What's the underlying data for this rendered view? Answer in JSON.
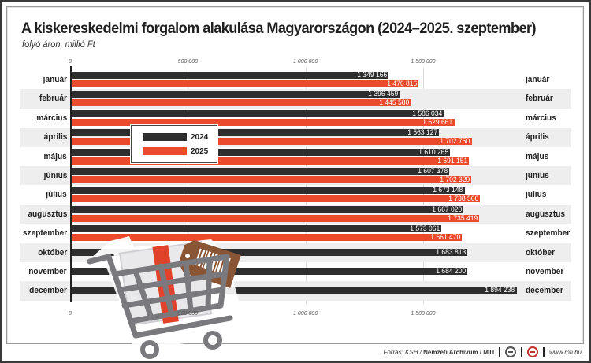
{
  "header": {
    "title": "A kiskereskedelmi forgalom alakulása Magyarországon (2024–2025. szeptember)",
    "subtitle": "folyó áron, millió Ft"
  },
  "axis": {
    "ticks": [
      "0",
      "500 000",
      "1 000 000",
      "1 500 000"
    ]
  },
  "legend": {
    "items": [
      {
        "label": "2024",
        "color": "#2e2e2e"
      },
      {
        "label": "2025",
        "color": "#ec4a2c"
      }
    ]
  },
  "rows": [
    {
      "month": "január",
      "v2024": "1 349 166",
      "v2025": "1 476 816"
    },
    {
      "month": "február",
      "v2024": "1 396 459",
      "v2025": "1 445 580"
    },
    {
      "month": "március",
      "v2024": "1 586 034",
      "v2025": "1 629 661"
    },
    {
      "month": "április",
      "v2024": "1 563 127",
      "v2025": "1 702 750"
    },
    {
      "month": "május",
      "v2024": "1 610 265",
      "v2025": "1 691 151"
    },
    {
      "month": "június",
      "v2024": "1 607 378",
      "v2025": "1 702 329"
    },
    {
      "month": "július",
      "v2024": "1 673 148",
      "v2025": "1 738 566"
    },
    {
      "month": "augusztus",
      "v2024": "1 667 020",
      "v2025": "1 735 419"
    },
    {
      "month": "szeptember",
      "v2024": "1 573 061",
      "v2025": "1 661 470"
    },
    {
      "month": "október",
      "v2024": "1 683 813",
      "v2025": null
    },
    {
      "month": "november",
      "v2024": "1 684 200",
      "v2025": null
    },
    {
      "month": "december",
      "v2024": "1 894 238",
      "v2025": null
    }
  ],
  "footer": {
    "source_prefix": "Forrás: KSH / ",
    "source_bold": "Nemzeti Archívum / MTI",
    "url": "www.mti.hu"
  },
  "chart_data": {
    "type": "bar",
    "orientation": "horizontal",
    "title": "A kiskereskedelmi forgalom alakulása Magyarországon (2024–2025. szeptember)",
    "subtitle": "folyó áron, millió Ft",
    "xlabel": "",
    "ylabel": "",
    "categories": [
      "január",
      "február",
      "március",
      "április",
      "május",
      "június",
      "július",
      "augusztus",
      "szeptember",
      "október",
      "november",
      "december"
    ],
    "series": [
      {
        "name": "2024",
        "color": "#2e2e2e",
        "values": [
          1349166,
          1396459,
          1586034,
          1563127,
          1610265,
          1607378,
          1673148,
          1667020,
          1573061,
          1683813,
          1684200,
          1894238
        ]
      },
      {
        "name": "2025",
        "color": "#ec4a2c",
        "values": [
          1476816,
          1445580,
          1629661,
          1702750,
          1691151,
          1702329,
          1738566,
          1735419,
          1661470,
          null,
          null,
          null
        ]
      }
    ],
    "xlim": [
      0,
      2000000
    ],
    "xticks": [
      0,
      500000,
      1000000,
      1500000
    ],
    "xtick_labels": [
      "0",
      "500 000",
      "1 000 000",
      "1 500 000"
    ],
    "grid": true,
    "legend_position": "inside upper-left",
    "source": "Forrás: KSH / Nemzeti Archívum / MTI"
  }
}
